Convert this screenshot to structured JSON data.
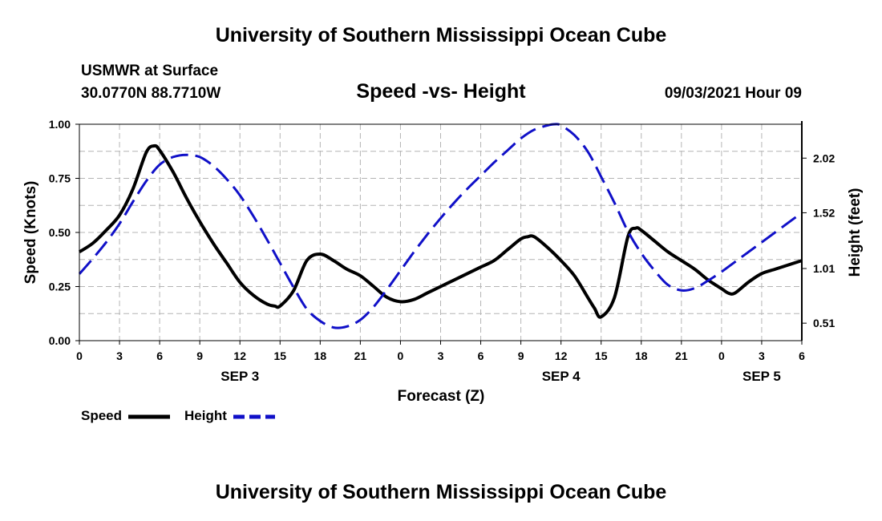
{
  "header": {
    "title": "University of Southern Mississippi Ocean Cube",
    "station": "USMWR at Surface",
    "coords": "30.0770N  88.7710W",
    "timestamp": "09/03/2021 Hour 09"
  },
  "footer": {
    "title": "University of Southern Mississippi Ocean Cube"
  },
  "colors": {
    "speed": "#000000",
    "height": "#1010c8",
    "grid": "#b4b4b4"
  },
  "chart_data": {
    "type": "line",
    "title": "Speed -vs- Height",
    "xlabel": "Forecast (Z)",
    "ylabel": "Speed (Knots)",
    "y2label": "Height (feet)",
    "xlim": [
      0,
      54
    ],
    "ylim": [
      0,
      1
    ],
    "y2lim": [
      0.35,
      2.33
    ],
    "x_ticks": [
      0,
      3,
      6,
      9,
      12,
      15,
      18,
      21,
      24,
      27,
      30,
      33,
      36,
      39,
      42,
      45,
      48,
      51,
      54
    ],
    "x_tick_labels": [
      "0",
      "3",
      "6",
      "9",
      "12",
      "15",
      "18",
      "21",
      "0",
      "3",
      "6",
      "9",
      "12",
      "15",
      "18",
      "21",
      "0",
      "3",
      "6"
    ],
    "y_ticks": [
      0,
      0.25,
      0.5,
      0.75,
      1.0
    ],
    "y_tick_labels": [
      "0.00",
      "0.25",
      "0.50",
      "0.75",
      "1.00"
    ],
    "y2_ticks": [
      0.51,
      1.01,
      1.52,
      2.02
    ],
    "y2_tick_labels": [
      "0.51",
      "1.01",
      "1.52",
      "2.02"
    ],
    "day_labels": [
      {
        "x": 12,
        "label": "SEP 3"
      },
      {
        "x": 36,
        "label": "SEP 4"
      },
      {
        "x": 51,
        "label": "SEP 5"
      }
    ],
    "grid": true,
    "legend_position": "bottom-left",
    "series": [
      {
        "name": "Speed",
        "axis": "left",
        "style": "solid",
        "x": [
          0,
          1,
          2,
          3,
          4,
          5,
          5.6,
          6,
          7,
          8,
          9,
          10,
          11,
          12,
          13,
          14,
          14.6,
          15,
          16,
          17,
          18,
          19,
          20,
          21,
          22,
          23,
          24,
          25,
          26,
          27,
          28,
          29,
          30,
          31,
          32,
          33,
          33.5,
          34,
          35,
          36,
          37,
          38,
          38.5,
          39,
          40,
          41,
          41.6,
          42,
          43,
          44,
          45,
          46,
          47,
          48,
          48.5,
          49,
          50,
          51,
          52,
          53,
          54
        ],
        "y": [
          0.41,
          0.45,
          0.51,
          0.58,
          0.7,
          0.87,
          0.9,
          0.88,
          0.78,
          0.66,
          0.55,
          0.45,
          0.36,
          0.27,
          0.21,
          0.17,
          0.16,
          0.16,
          0.23,
          0.37,
          0.4,
          0.37,
          0.33,
          0.3,
          0.25,
          0.2,
          0.18,
          0.19,
          0.22,
          0.25,
          0.28,
          0.31,
          0.34,
          0.37,
          0.42,
          0.47,
          0.48,
          0.48,
          0.43,
          0.37,
          0.3,
          0.2,
          0.15,
          0.11,
          0.2,
          0.48,
          0.52,
          0.51,
          0.46,
          0.41,
          0.37,
          0.33,
          0.28,
          0.24,
          0.22,
          0.22,
          0.27,
          0.31,
          0.33,
          0.35,
          0.37
        ]
      },
      {
        "name": "Height",
        "axis": "right",
        "style": "dashed",
        "x": [
          0,
          1,
          2,
          3,
          4,
          5,
          6,
          7,
          8,
          9,
          10,
          11,
          12,
          13,
          14,
          15,
          16,
          17,
          18,
          19,
          20,
          21,
          22,
          23,
          24,
          25,
          26,
          27,
          28,
          29,
          30,
          31,
          32,
          33,
          34,
          35,
          35.5,
          36,
          37,
          38,
          39,
          40,
          41,
          42,
          43,
          44,
          45,
          46,
          47,
          48,
          49,
          50,
          51,
          52,
          53,
          54
        ],
        "y": [
          0.96,
          1.1,
          1.25,
          1.42,
          1.62,
          1.81,
          1.96,
          2.03,
          2.05,
          2.03,
          1.95,
          1.83,
          1.68,
          1.49,
          1.28,
          1.06,
          0.84,
          0.64,
          0.53,
          0.47,
          0.48,
          0.54,
          0.66,
          0.82,
          0.99,
          1.16,
          1.32,
          1.47,
          1.61,
          1.74,
          1.86,
          1.98,
          2.09,
          2.2,
          2.28,
          2.32,
          2.33,
          2.32,
          2.23,
          2.08,
          1.85,
          1.61,
          1.35,
          1.15,
          0.99,
          0.86,
          0.81,
          0.83,
          0.9,
          0.98,
          1.07,
          1.16,
          1.25,
          1.34,
          1.43,
          1.52
        ]
      }
    ]
  }
}
